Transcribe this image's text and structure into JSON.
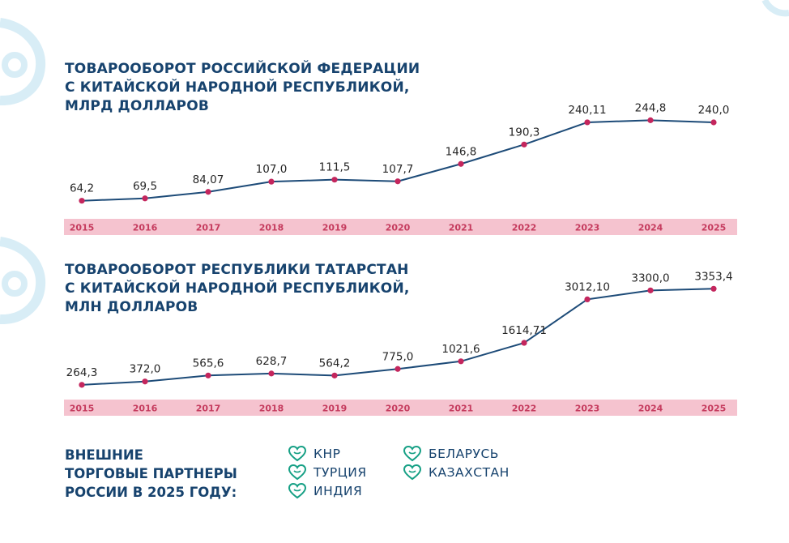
{
  "colors": {
    "title": "#17436e",
    "line": "#1d4b78",
    "point": "#c4265d",
    "year_band": "#f5c3cf",
    "year_text": "#c53b5e",
    "icon": "#16a085"
  },
  "chart_data": [
    {
      "type": "line",
      "title_lines": [
        "ТОВАРООБОРОТ РОССИЙСКОЙ ФЕДЕРАЦИИ",
        "С КИТАЙСКОЙ НАРОДНОЙ РЕСПУБЛИКОЙ,",
        "МЛРД ДОЛЛАРОВ"
      ],
      "categories": [
        "2015",
        "2016",
        "2017",
        "2018",
        "2019",
        "2020",
        "2021",
        "2022",
        "2023",
        "2024",
        "2025"
      ],
      "values": [
        64.2,
        69.5,
        84.07,
        107.0,
        111.5,
        107.7,
        146.8,
        190.3,
        240.11,
        244.8,
        240.0
      ],
      "value_labels": [
        "64,2",
        "69,5",
        "84,07",
        "107,0",
        "111,5",
        "107,7",
        "146,8",
        "190,3",
        "240,11",
        "244,8",
        "240,0"
      ],
      "ylim": [
        40,
        260
      ]
    },
    {
      "type": "line",
      "title_lines": [
        "ТОВАРООБОРОТ РЕСПУБЛИКИ ТАТАРСТАН",
        "С КИТАЙСКОЙ НАРОДНОЙ РЕСПУБЛИКОЙ,",
        "МЛН ДОЛЛАРОВ"
      ],
      "categories": [
        "2015",
        "2016",
        "2017",
        "2018",
        "2019",
        "2020",
        "2021",
        "2022",
        "2023",
        "2024",
        "2025"
      ],
      "values": [
        264.3,
        372.0,
        565.6,
        628.7,
        564.2,
        775.0,
        1021.6,
        1614.71,
        3012.1,
        3300.0,
        3353.4
      ],
      "value_labels": [
        "264,3",
        "372,0",
        "565,6",
        "628,7",
        "564,2",
        "775,0",
        "1021,6",
        "1614,71",
        "3012,10",
        "3300,0",
        "3353,4"
      ],
      "ylim": [
        0,
        3700
      ]
    }
  ],
  "partners": {
    "title_lines": [
      "ВНЕШНИЕ",
      "ТОРГОВЫЕ ПАРТНЕРЫ",
      "РОССИИ В 2025 ГОДУ:"
    ],
    "items": [
      {
        "label": "КНР",
        "icon": "heart-leaf-icon"
      },
      {
        "label": "ТУРЦИЯ",
        "icon": "heart-leaf-icon"
      },
      {
        "label": "ИНДИЯ",
        "icon": "heart-leaf-icon"
      },
      {
        "label": "БЕЛАРУСЬ",
        "icon": "heart-leaf-icon"
      },
      {
        "label": "КАЗАХСТАН",
        "icon": "heart-leaf-icon"
      }
    ]
  }
}
